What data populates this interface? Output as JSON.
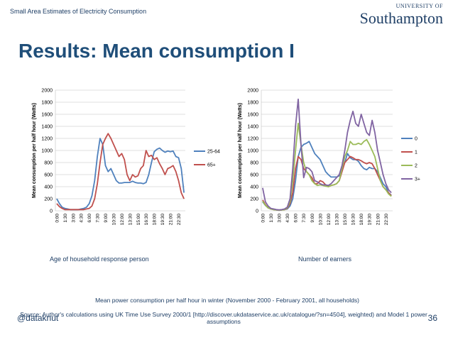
{
  "header": {
    "left_text": "Small Area Estimates of Electricity Consumption",
    "logo_top": "UNIVERSITY OF",
    "logo_main": "Southampton"
  },
  "slide": {
    "title": "Results: Mean consumption I",
    "caption_left": "Age of household response person",
    "caption_right": "Number of earners",
    "note_main": "Mean power consumption per half hour in winter (November 2000 - February 2001, all households)",
    "note_source": "Source: Author's calculations using UK Time Use Survey 2000/1 [http://discover.ukdataservice.ac.uk/catalogue/?sn=4504], weighted) and Model 1 power assumptions",
    "footer_handle": "@dataknut",
    "page_number": "36"
  },
  "chart_data": [
    {
      "type": "line",
      "ylabel": "Mean consumption per half hour (Watts)",
      "ylim": [
        0,
        2000
      ],
      "yticks": [
        "0",
        "200",
        "400",
        "600",
        "800",
        "1000",
        "1200",
        "1400",
        "1600",
        "1800",
        "2000"
      ],
      "x_tick_labels": [
        "0:00",
        "1:30",
        "3:00",
        "4:30",
        "6:00",
        "7:30",
        "9:00",
        "10:30",
        "12:00",
        "13:30",
        "15:00",
        "16:30",
        "18:00",
        "19:30",
        "21:00",
        "22:30"
      ],
      "grid": true,
      "legend_position": "right",
      "series": [
        {
          "name": "25-64",
          "color": "#4f81bd",
          "values": [
            200,
            120,
            60,
            40,
            30,
            20,
            20,
            20,
            20,
            30,
            40,
            60,
            120,
            250,
            500,
            900,
            1200,
            1100,
            750,
            650,
            700,
            600,
            500,
            460,
            460,
            470,
            470,
            470,
            490,
            470,
            460,
            460,
            450,
            470,
            600,
            800,
            980,
            1020,
            1040,
            1000,
            970,
            990,
            980,
            990,
            900,
            880,
            700,
            300
          ]
        },
        {
          "name": "65+",
          "color": "#c0504d",
          "values": [
            120,
            70,
            40,
            20,
            20,
            20,
            20,
            20,
            20,
            20,
            20,
            30,
            40,
            80,
            200,
            450,
            800,
            1100,
            1200,
            1280,
            1200,
            1100,
            1000,
            900,
            950,
            850,
            600,
            500,
            600,
            560,
            580,
            700,
            750,
            1000,
            900,
            920,
            850,
            880,
            780,
            700,
            600,
            700,
            720,
            750,
            650,
            500,
            300,
            200
          ]
        }
      ]
    },
    {
      "type": "line",
      "ylabel": "Mean consumption per half hour (Watts)",
      "ylim": [
        0,
        2000
      ],
      "yticks": [
        "0",
        "200",
        "400",
        "600",
        "800",
        "1000",
        "1200",
        "1400",
        "1600",
        "1800",
        "2000"
      ],
      "x_tick_labels": [
        "0:00",
        "1:30",
        "3:00",
        "4:30",
        "6:00",
        "7:30",
        "9:00",
        "10:30",
        "12:00",
        "13:30",
        "15:00",
        "16:30",
        "18:00",
        "19:30",
        "21:00",
        "22:30"
      ],
      "grid": true,
      "legend_position": "right",
      "series": [
        {
          "name": "0",
          "color": "#4f81bd",
          "values": [
            150,
            90,
            50,
            30,
            20,
            15,
            10,
            15,
            20,
            30,
            80,
            200,
            500,
            900,
            1050,
            1100,
            1120,
            1150,
            1050,
            950,
            900,
            850,
            750,
            650,
            600,
            560,
            560,
            560,
            580,
            700,
            800,
            950,
            880,
            850,
            850,
            820,
            750,
            700,
            680,
            720,
            700,
            700,
            650,
            550,
            450,
            400,
            300,
            260
          ]
        },
        {
          "name": "1",
          "color": "#c0504d",
          "values": [
            180,
            100,
            50,
            30,
            20,
            15,
            10,
            15,
            20,
            40,
            120,
            300,
            700,
            900,
            850,
            700,
            650,
            600,
            550,
            450,
            450,
            500,
            480,
            430,
            400,
            420,
            430,
            450,
            500,
            650,
            800,
            850,
            900,
            880,
            850,
            850,
            830,
            800,
            780,
            800,
            780,
            700,
            600,
            500,
            400,
            350,
            300,
            250
          ]
        },
        {
          "name": "2",
          "color": "#9bbb59",
          "values": [
            160,
            90,
            50,
            30,
            20,
            15,
            10,
            15,
            20,
            50,
            150,
            500,
            1000,
            1450,
            1100,
            800,
            650,
            600,
            500,
            450,
            420,
            430,
            420,
            410,
            400,
            420,
            430,
            450,
            500,
            700,
            900,
            1000,
            1150,
            1100,
            1100,
            1120,
            1100,
            1150,
            1180,
            1100,
            1000,
            900,
            700,
            500,
            400,
            350,
            280,
            240
          ]
        },
        {
          "name": "3+",
          "color": "#8064a2",
          "values": [
            380,
            150,
            80,
            40,
            30,
            20,
            15,
            20,
            30,
            60,
            200,
            700,
            1400,
            1850,
            1100,
            550,
            720,
            700,
            650,
            500,
            480,
            450,
            430,
            430,
            420,
            450,
            500,
            550,
            600,
            750,
            1000,
            1300,
            1500,
            1650,
            1450,
            1400,
            1600,
            1450,
            1300,
            1250,
            1500,
            1300,
            1000,
            800,
            600,
            450,
            350,
            300
          ]
        }
      ]
    }
  ]
}
